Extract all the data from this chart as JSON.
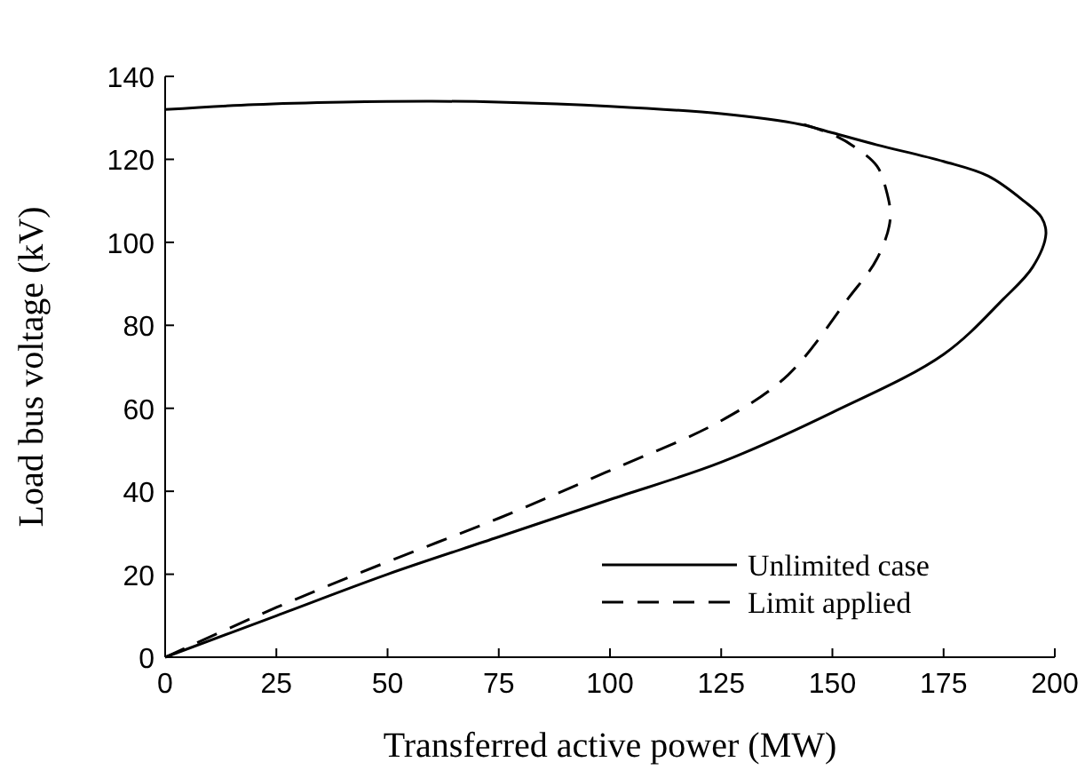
{
  "chart_data": {
    "type": "line",
    "xlabel": "Transferred active power (MW)",
    "ylabel": "Load bus voltage (kV)",
    "xlim": [
      0,
      200
    ],
    "ylim": [
      0,
      140
    ],
    "xticks": [
      0,
      25,
      50,
      75,
      100,
      125,
      150,
      175,
      200
    ],
    "yticks": [
      0,
      20,
      40,
      60,
      80,
      100,
      120,
      140
    ],
    "grid": false,
    "legend": "bottom right",
    "series": [
      {
        "name": "Unlimited case",
        "color": "#000000",
        "line_style": "solid",
        "x": [
          0,
          25,
          50,
          75,
          100,
          125,
          150,
          175,
          188.5,
          195,
          198,
          197,
          193,
          185,
          175,
          160,
          150,
          143,
          125,
          100,
          75,
          60,
          40,
          20,
          0
        ],
        "values": [
          0,
          10,
          20,
          29,
          38,
          47,
          59,
          73,
          86.4,
          94,
          102,
          106,
          110,
          116,
          119.5,
          123.5,
          126.4,
          128.4,
          131,
          132.8,
          133.8,
          134,
          133.8,
          133.2,
          132
        ]
      },
      {
        "name": "Limit applied",
        "color": "#000000",
        "line_style": "dashed",
        "x": [
          0,
          25,
          50,
          75,
          100,
          125,
          140,
          153.5,
          160,
          163,
          162,
          160,
          155,
          150,
          143.6
        ],
        "values": [
          0,
          12,
          23,
          33.5,
          45,
          57,
          68,
          86.4,
          96,
          105.6,
          113,
          118.4,
          123,
          126,
          128.4
        ]
      }
    ]
  }
}
